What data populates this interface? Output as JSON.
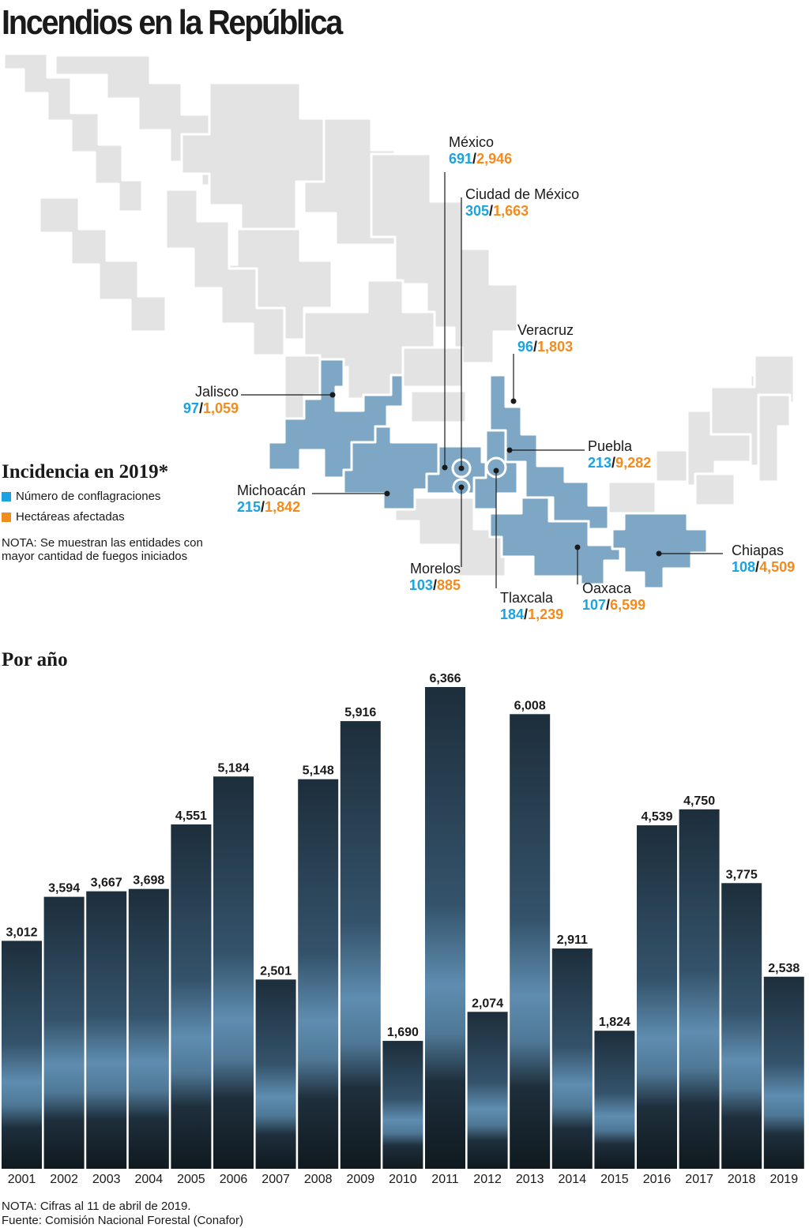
{
  "title": "Incendios en la República",
  "legend": {
    "title": "Incidencia en 2019*",
    "items": [
      {
        "label": "Número de conflagraciones",
        "color": "#1aa3e0"
      },
      {
        "label": "Hectáreas afectadas",
        "color": "#f28c1e"
      }
    ],
    "note": "NOTA: Se muestran las entidades con mayor cantidad de fuegos iniciados"
  },
  "map": {
    "base_color": "#e3e3e4",
    "highlight_color": "#7ea7c6",
    "states": [
      {
        "name": "México",
        "fires": "691",
        "hectares": "2,946"
      },
      {
        "name": "Ciudad de México",
        "fires": "305",
        "hectares": "1,663"
      },
      {
        "name": "Veracruz",
        "fires": "96",
        "hectares": "1,803"
      },
      {
        "name": "Jalisco",
        "fires": "97",
        "hectares": "1,059"
      },
      {
        "name": "Puebla",
        "fires": "213",
        "hectares": "9,282"
      },
      {
        "name": "Michoacán",
        "fires": "215",
        "hectares": "1,842"
      },
      {
        "name": "Chiapas",
        "fires": "108",
        "hectares": "4,509"
      },
      {
        "name": "Morelos",
        "fires": "103",
        "hectares": "885"
      },
      {
        "name": "Oaxaca",
        "fires": "107",
        "hectares": "6,599"
      },
      {
        "name": "Tlaxcala",
        "fires": "184",
        "hectares": "1,239"
      }
    ]
  },
  "chart_title": "Por año",
  "chart_data": {
    "type": "bar",
    "categories": [
      "2001",
      "2002",
      "2003",
      "2004",
      "2005",
      "2006",
      "2007",
      "2008",
      "2009",
      "2010",
      "2011",
      "2012",
      "2013",
      "2014",
      "2015",
      "2016",
      "2017",
      "2018",
      "2019"
    ],
    "values": [
      3012,
      3594,
      3667,
      3698,
      4551,
      5184,
      2501,
      5148,
      5916,
      1690,
      6366,
      2074,
      6008,
      2911,
      1824,
      4539,
      4750,
      3775,
      2538
    ],
    "value_labels": [
      "3,012",
      "3,594",
      "3,667",
      "3,698",
      "4,551",
      "5,184",
      "2,501",
      "5,148",
      "5,916",
      "1,690",
      "6,366",
      "2,074",
      "6,008",
      "2,911",
      "1,824",
      "4,539",
      "4,750",
      "3,775",
      "2,538"
    ],
    "title": "",
    "xlabel": "",
    "ylabel": "",
    "ylim": [
      0,
      6366
    ],
    "grid": false,
    "bar_color": "#2e4a5e",
    "glow_color": "#6f9cbf"
  },
  "footnotes": [
    "NOTA: Cifras al 11 de abril de 2019.",
    "Fuente: Comisión Nacional Forestal (Conafor)"
  ]
}
